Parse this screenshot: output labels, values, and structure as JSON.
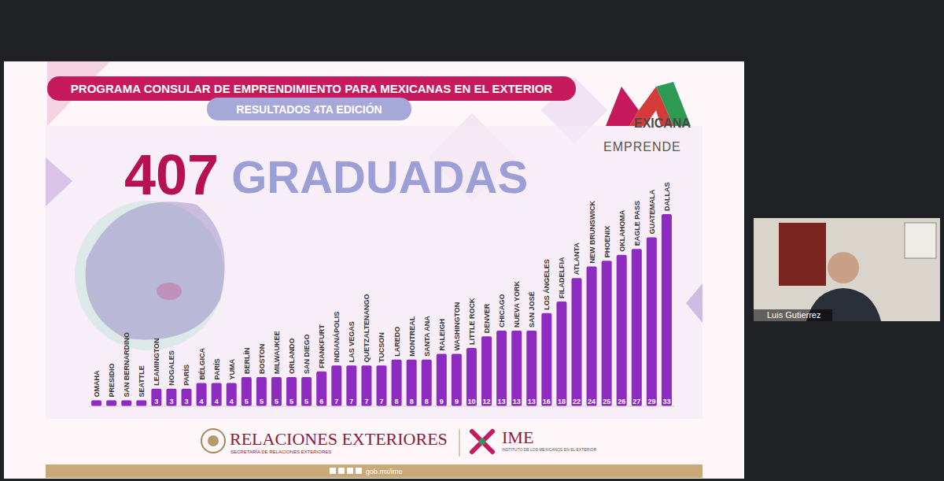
{
  "chart_data": {
    "type": "bar",
    "title": "PROGRAMA CONSULAR DE EMPRENDIMIENTO PARA MEXICANAS EN EL EXTERIOR",
    "subtitle": "RESULTADOS 4TA EDICIÓN",
    "categories": [
      "OMAHA",
      "PRESIDIO",
      "SAN BERNARDINO",
      "SEATTLE",
      "LEAMINGTON",
      "NOGALES",
      "PARÍS",
      "BÉLGICA",
      "PARÍS",
      "YUMA",
      "BERLÍN",
      "BOSTON",
      "MILWAUKEE",
      "ORLANDO",
      "SAN DIEGO",
      "FRANKFURT",
      "INDIANÁPOLIS",
      "LAS VEGAS",
      "QUETZALTENANGO",
      "TUCSON",
      "LAREDO",
      "MONTREAL",
      "SANTA ANA",
      "RALEIGH",
      "WASHINGTON",
      "LITTLE ROCK",
      "DENVER",
      "CHICAGO",
      "NUEVA YORK",
      "SAN JOSÉ",
      "LOS ÁNGELES",
      "FILADELFIA",
      "ATLANTA",
      "NEW BRUNSWICK",
      "PHOENIX",
      "OKLAHOMA",
      "EAGLE PASS",
      "GUATEMALA",
      "DALLAS"
    ],
    "values": [
      1,
      1,
      1,
      1,
      3,
      3,
      3,
      4,
      4,
      4,
      5,
      5,
      5,
      5,
      5,
      6,
      7,
      7,
      7,
      7,
      8,
      8,
      8,
      9,
      9,
      10,
      12,
      13,
      13,
      13,
      16,
      18,
      22,
      24,
      25,
      26,
      27,
      29,
      33
    ],
    "value_labels": [
      null,
      null,
      null,
      null,
      "3",
      "3",
      "3",
      "4",
      "4",
      "4",
      "5",
      "5",
      "5",
      "5",
      "5",
      "6",
      "7",
      "7",
      "7",
      "7",
      "8",
      "8",
      "8",
      "9",
      "9",
      "10",
      "12",
      "13",
      "13",
      "13",
      "16",
      "18",
      "22",
      "24",
      "25",
      "26",
      "27",
      "29",
      "33"
    ],
    "color": "#8e2cc2",
    "ylim": [
      0,
      33
    ],
    "data_labels": true,
    "tick_labels": "x"
  },
  "slide": {
    "headline_number": 407,
    "headline_text": "GRADUADAS",
    "logo": [
      "EXICANA",
      "EMPRENDE"
    ],
    "footer": {
      "ministry": "RELACIONES EXTERIORES",
      "ministry_sub": "SECRETARÍA DE RELACIONES EXTERIORES",
      "institute": "IME",
      "institute_sub": "INSTITUTO DE LOS MEXICANOS EN EL EXTERIOR",
      "url": "gob.mx/ime"
    }
  },
  "video": {
    "participant": "Luis Gutierrez"
  }
}
